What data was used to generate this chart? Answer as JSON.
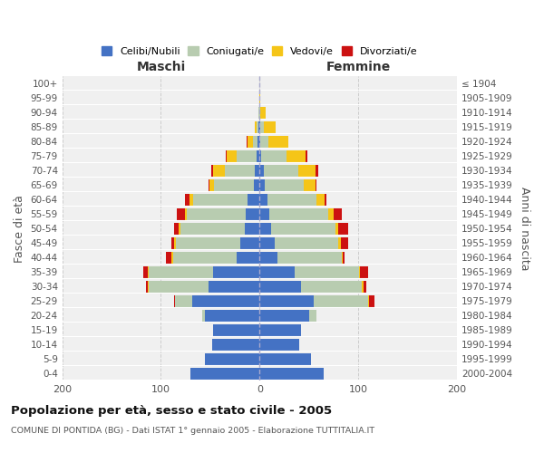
{
  "age_groups_bottom_to_top": [
    "0-4",
    "5-9",
    "10-14",
    "15-19",
    "20-24",
    "25-29",
    "30-34",
    "35-39",
    "40-44",
    "45-49",
    "50-54",
    "55-59",
    "60-64",
    "65-69",
    "70-74",
    "75-79",
    "80-84",
    "85-89",
    "90-94",
    "95-99",
    "100+"
  ],
  "birth_years_bottom_to_top": [
    "2000-2004",
    "1995-1999",
    "1990-1994",
    "1985-1989",
    "1980-1984",
    "1975-1979",
    "1970-1974",
    "1965-1969",
    "1960-1964",
    "1955-1959",
    "1950-1954",
    "1945-1949",
    "1940-1944",
    "1935-1939",
    "1930-1934",
    "1925-1929",
    "1920-1924",
    "1915-1919",
    "1910-1914",
    "1905-1909",
    "≤ 1904"
  ],
  "colors": {
    "celibi": "#4472C4",
    "coniugati": "#B8CCB0",
    "vedovi": "#F5C518",
    "divorziati": "#CC1111"
  },
  "maschi": {
    "celibi": [
      70,
      55,
      48,
      47,
      55,
      68,
      52,
      47,
      23,
      20,
      15,
      14,
      12,
      6,
      5,
      3,
      2,
      1,
      0,
      0,
      0
    ],
    "coniugati": [
      0,
      0,
      0,
      0,
      3,
      18,
      60,
      65,
      65,
      65,
      65,
      60,
      55,
      40,
      30,
      20,
      5,
      2,
      1,
      0,
      0
    ],
    "vedovi": [
      0,
      0,
      0,
      0,
      0,
      0,
      1,
      1,
      1,
      2,
      2,
      2,
      4,
      5,
      12,
      10,
      5,
      2,
      0,
      0,
      0
    ],
    "divorziati": [
      0,
      0,
      0,
      0,
      0,
      1,
      2,
      5,
      6,
      2,
      5,
      8,
      5,
      1,
      2,
      1,
      1,
      0,
      0,
      0,
      0
    ]
  },
  "femmine": {
    "celibi": [
      65,
      52,
      40,
      42,
      50,
      55,
      42,
      36,
      18,
      15,
      12,
      10,
      8,
      5,
      4,
      2,
      1,
      1,
      0,
      0,
      0
    ],
    "coniugati": [
      0,
      0,
      0,
      0,
      8,
      55,
      62,
      65,
      65,
      65,
      65,
      60,
      50,
      40,
      35,
      25,
      8,
      3,
      1,
      0,
      0
    ],
    "vedovi": [
      0,
      0,
      0,
      0,
      0,
      1,
      1,
      1,
      1,
      2,
      3,
      5,
      8,
      12,
      18,
      20,
      20,
      12,
      5,
      1,
      0
    ],
    "divorziati": [
      0,
      0,
      0,
      0,
      0,
      5,
      3,
      8,
      2,
      8,
      10,
      8,
      2,
      1,
      2,
      1,
      0,
      0,
      0,
      0,
      0
    ]
  },
  "title": "Popolazione per età, sesso e stato civile - 2005",
  "subtitle": "COMUNE DI PONTIDA (BG) - Dati ISTAT 1° gennaio 2005 - Elaborazione TUTTITALIA.IT",
  "xlabel_left": "Maschi",
  "xlabel_right": "Femmine",
  "ylabel_left": "Fasce di età",
  "ylabel_right": "Anni di nascita",
  "xlim": 200,
  "legend_labels": [
    "Celibi/Nubili",
    "Coniugati/e",
    "Vedovi/e",
    "Divorziati/e"
  ],
  "background_color": "#f0f0f0"
}
